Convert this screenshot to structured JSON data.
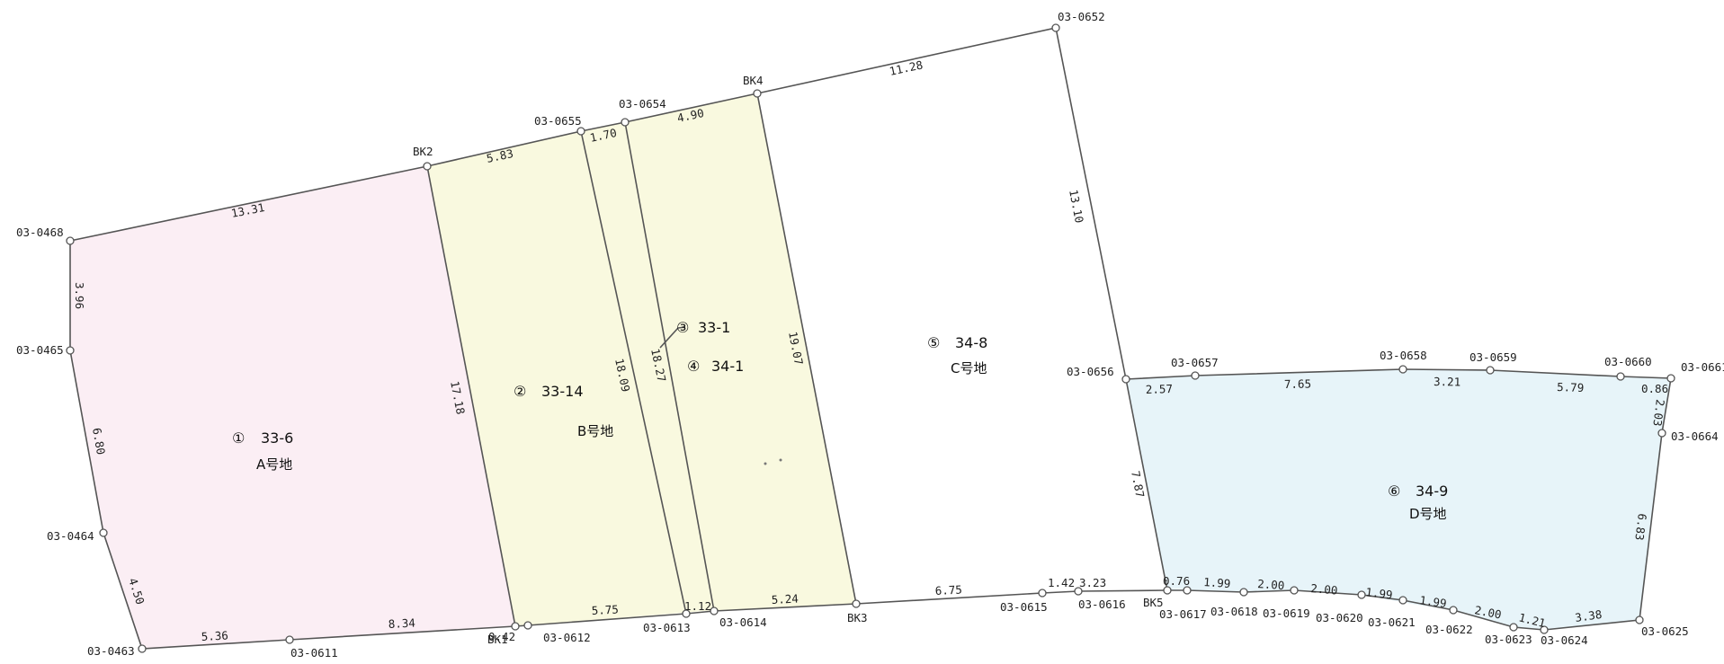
{
  "colors": {
    "lot_a": "#fbeef4",
    "lot_b": "#f9f9df",
    "lot_c": "#ffffff",
    "lot_d": "#e7f4f9",
    "line": "#555555",
    "text": "#222222"
  },
  "lots": [
    {
      "id": "a",
      "num": "①",
      "parcel": "33-6",
      "name": "A号地"
    },
    {
      "id": "b",
      "num": "②",
      "parcel": "33-14",
      "name": "B号地"
    },
    {
      "id": "s3",
      "num": "③",
      "parcel": "33-1",
      "name": ""
    },
    {
      "id": "s4",
      "num": "④",
      "parcel": "34-1",
      "name": ""
    },
    {
      "id": "c",
      "num": "⑤",
      "parcel": "34-8",
      "name": "C号地"
    },
    {
      "id": "d",
      "num": "⑥",
      "parcel": "34-9",
      "name": "D号地"
    }
  ],
  "points": [
    "03-0468",
    "03-0465",
    "03-0464",
    "03-0463",
    "03-0611",
    "BK1",
    "03-0612",
    "03-0613",
    "03-0614",
    "BK3",
    "03-0615",
    "03-0616",
    "BK5",
    "03-0617",
    "03-0618",
    "03-0619",
    "03-0620",
    "03-0621",
    "03-0622",
    "03-0623",
    "03-0624",
    "03-0625",
    "03-0664",
    "03-0661",
    "03-0660",
    "03-0659",
    "03-0658",
    "03-0657",
    "03-0656",
    "03-0652",
    "BK4",
    "03-0654",
    "03-0655",
    "BK2"
  ],
  "dimensions": [
    "13.31",
    "5.83",
    "1.70",
    "4.90",
    "11.28",
    "13.10",
    "3.96",
    "6.80",
    "4.50",
    "5.36",
    "8.34",
    "0.42",
    "5.75",
    "1.12",
    "5.24",
    "6.75",
    "1.42",
    "3.23",
    "0.76",
    "1.99",
    "2.00",
    "2.00",
    "1.99",
    "1.99",
    "2.00",
    "1.21",
    "3.38",
    "6.83",
    "2.03",
    "0.86",
    "5.79",
    "3.21",
    "7.65",
    "2.57",
    "7.87",
    "17.18",
    "18.09",
    "18.27",
    "19.07"
  ]
}
